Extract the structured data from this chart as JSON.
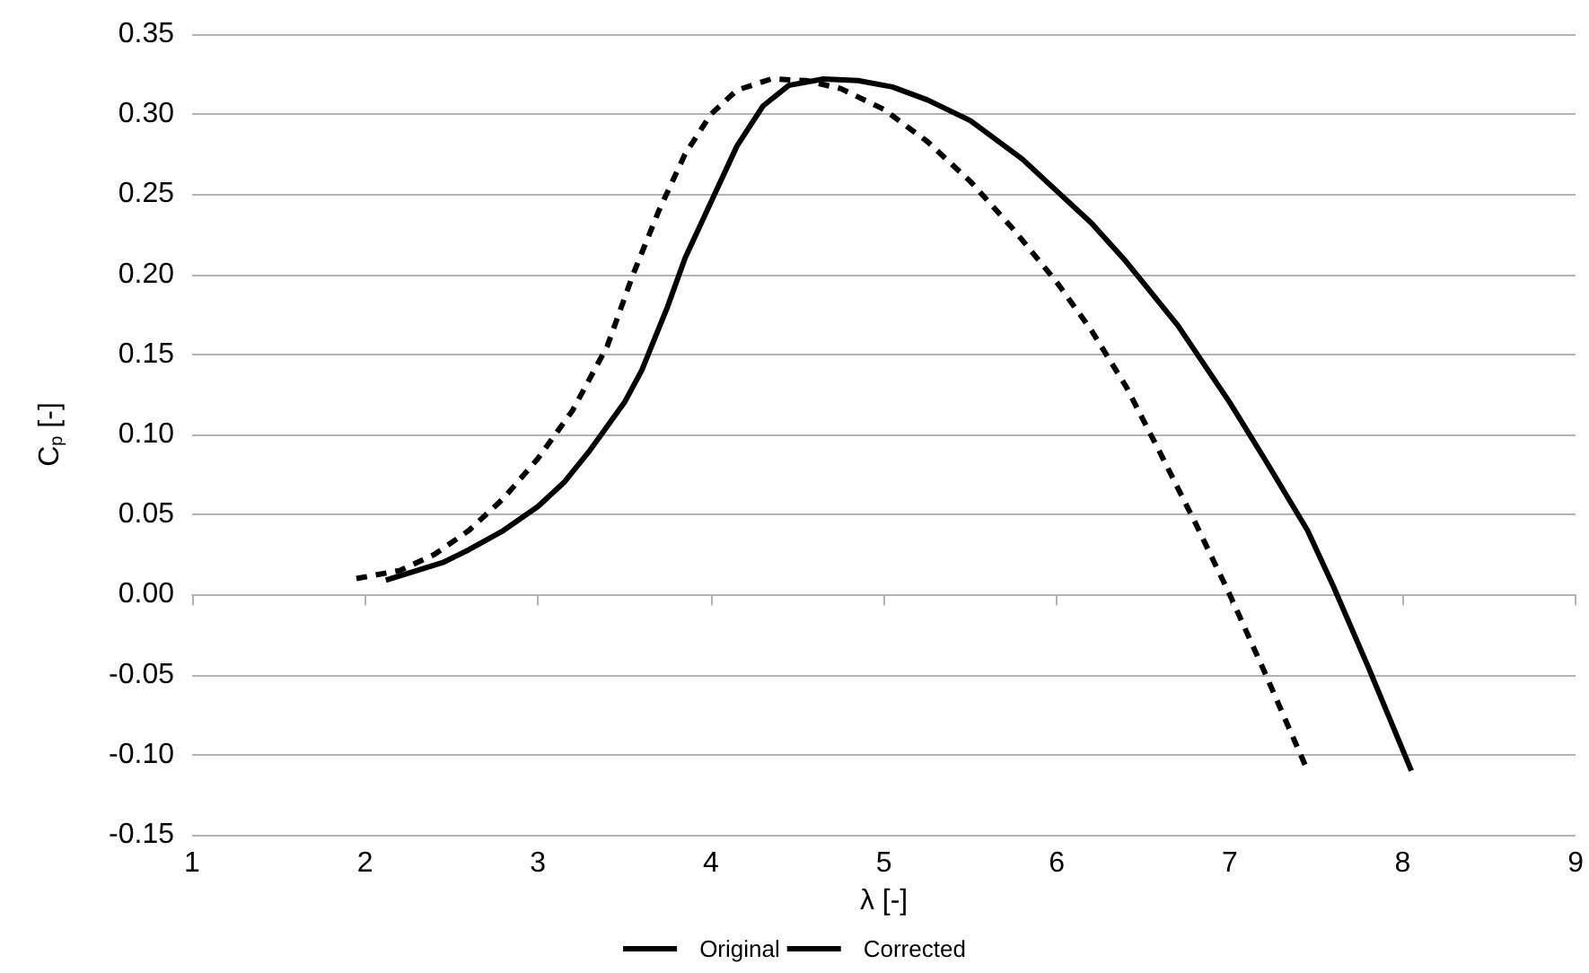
{
  "chart_data": {
    "type": "line",
    "xlabel": "λ [-]",
    "ylabel": "C$_{p}$ [-]",
    "xlim": [
      1,
      9
    ],
    "xticks": [
      1,
      2,
      3,
      4,
      5,
      6,
      7,
      8,
      9
    ],
    "ylim": [
      -0.15,
      0.35
    ],
    "yticks": [
      {
        "value": -0.15,
        "label": "-0.15"
      },
      {
        "value": -0.1,
        "label": "-0.10"
      },
      {
        "value": -0.05,
        "label": "-0.05"
      },
      {
        "value": 0,
        "label": "0.00"
      },
      {
        "value": 0.05,
        "label": "0.05"
      },
      {
        "value": 0.1,
        "label": "0.10"
      },
      {
        "value": 0.15,
        "label": "0.15"
      },
      {
        "value": 0.2,
        "label": "0.20"
      },
      {
        "value": 0.25,
        "label": "0.25"
      },
      {
        "value": 0.3,
        "label": "0.30"
      },
      {
        "value": 0.35,
        "label": "0.35"
      }
    ],
    "grid": "y",
    "legend": "bottom",
    "marker": "none",
    "series": [
      {
        "name": "Original",
        "color": "#000000",
        "line_style": "solid",
        "x": [
          2.12,
          2.3,
          2.45,
          2.6,
          2.8,
          3.0,
          3.15,
          3.3,
          3.5,
          3.6,
          3.75,
          3.85,
          4.0,
          4.15,
          4.3,
          4.45,
          4.65,
          4.85,
          5.05,
          5.25,
          5.5,
          5.8,
          6.0,
          6.2,
          6.4,
          6.7,
          7.0,
          7.2,
          7.45,
          7.6,
          7.8,
          8.05
        ],
        "values": [
          0.009,
          0.015,
          0.02,
          0.028,
          0.04,
          0.055,
          0.07,
          0.09,
          0.12,
          0.14,
          0.18,
          0.21,
          0.245,
          0.28,
          0.305,
          0.318,
          0.322,
          0.321,
          0.317,
          0.309,
          0.296,
          0.272,
          0.252,
          0.232,
          0.208,
          0.168,
          0.12,
          0.085,
          0.04,
          0.005,
          -0.045,
          -0.11
        ]
      },
      {
        "name": "Corrected",
        "color": "#000000",
        "line_style": "dashed",
        "x": [
          1.95,
          2.2,
          2.4,
          2.6,
          2.8,
          3.0,
          3.2,
          3.4,
          3.55,
          3.7,
          3.85,
          4.0,
          4.15,
          4.35,
          4.55,
          4.75,
          5.0,
          5.25,
          5.5,
          5.75,
          6.0,
          6.2,
          6.4,
          6.6,
          6.8,
          7.0,
          7.2,
          7.45
        ],
        "values": [
          0.01,
          0.015,
          0.025,
          0.04,
          0.06,
          0.085,
          0.115,
          0.155,
          0.2,
          0.24,
          0.275,
          0.3,
          0.315,
          0.322,
          0.321,
          0.316,
          0.303,
          0.283,
          0.258,
          0.228,
          0.195,
          0.165,
          0.13,
          0.088,
          0.045,
          0.0,
          -0.048,
          -0.11
        ]
      }
    ]
  }
}
